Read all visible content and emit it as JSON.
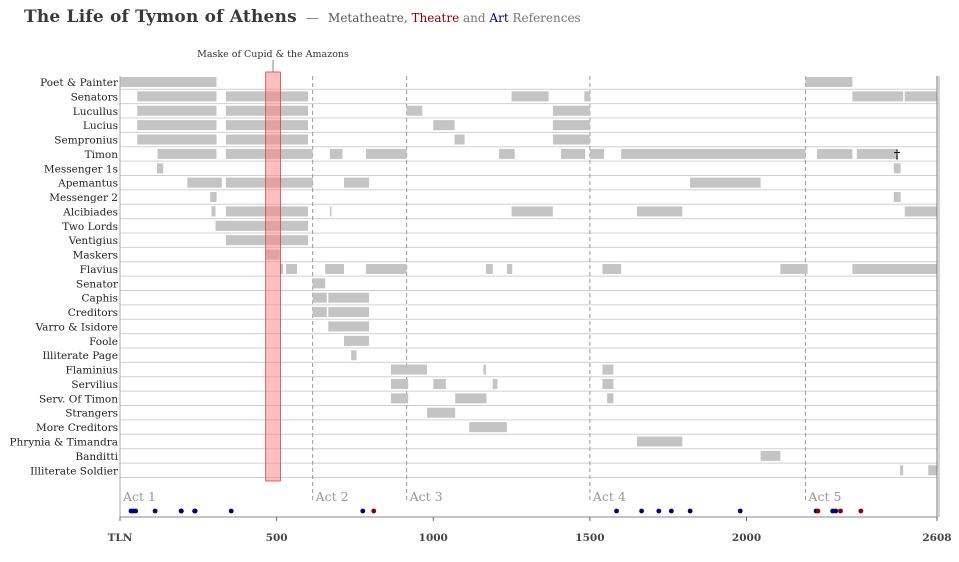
{
  "title": {
    "main": "The Life of Tymon of Athens",
    "dash": "—",
    "w1": "Metatheatre,",
    "w2": "Theatre",
    "w3": "and",
    "w4": "Art",
    "w5": "References"
  },
  "colors": {
    "bar": "#c4c4c4",
    "highlight": "#ff7f7f",
    "theatre": "#8b0000",
    "art": "#000080",
    "act_line": "#999999",
    "row_line": "#d0d0d0"
  },
  "chart_data": {
    "type": "timeline",
    "xlim": [
      0,
      2608
    ],
    "x_ticks": [
      {
        "value": 0,
        "label": "TLN"
      },
      {
        "value": 500,
        "label": "500"
      },
      {
        "value": 1000,
        "label": "1000"
      },
      {
        "value": 1500,
        "label": "1500"
      },
      {
        "value": 2000,
        "label": "2000"
      },
      {
        "value": 2608,
        "label": "2608"
      }
    ],
    "acts": [
      {
        "label": "Act 1",
        "start": 0
      },
      {
        "label": "Act 2",
        "start": 615
      },
      {
        "label": "Act 3",
        "start": 915
      },
      {
        "label": "Act 4",
        "start": 1500
      },
      {
        "label": "Act 5",
        "start": 2188
      }
    ],
    "highlight": {
      "label": "Maske of Cupid & the Amazons",
      "start": 465,
      "end": 512
    },
    "characters": [
      {
        "name": "Poet & Painter",
        "spans": [
          [
            0,
            308
          ],
          [
            2188,
            2338
          ]
        ]
      },
      {
        "name": "Senators",
        "spans": [
          [
            55,
            308
          ],
          [
            338,
            600
          ],
          [
            1250,
            1368
          ],
          [
            1482,
            1500
          ],
          [
            2338,
            2500
          ],
          [
            2505,
            2608
          ]
        ]
      },
      {
        "name": "Lucullus",
        "spans": [
          [
            55,
            308
          ],
          [
            338,
            600
          ],
          [
            915,
            965
          ],
          [
            1382,
            1500
          ]
        ]
      },
      {
        "name": "Lucius",
        "spans": [
          [
            55,
            308
          ],
          [
            338,
            600
          ],
          [
            1000,
            1068
          ],
          [
            1382,
            1500
          ]
        ]
      },
      {
        "name": "Sempronius",
        "spans": [
          [
            55,
            308
          ],
          [
            338,
            600
          ],
          [
            1068,
            1100
          ],
          [
            1382,
            1500
          ]
        ]
      },
      {
        "name": "Timon",
        "spans": [
          [
            120,
            308
          ],
          [
            338,
            615
          ],
          [
            670,
            710
          ],
          [
            785,
            915
          ],
          [
            1210,
            1240
          ],
          [
            1240,
            1260
          ],
          [
            1408,
            1485
          ],
          [
            1500,
            1545
          ],
          [
            1600,
            2188
          ],
          [
            2225,
            2338
          ],
          [
            2352,
            2480
          ]
        ],
        "marker": {
          "symbol": "†",
          "x": 2480
        }
      },
      {
        "name": "Messenger 1s",
        "spans": [
          [
            118,
            138
          ],
          [
            2470,
            2492
          ]
        ]
      },
      {
        "name": "Apemantus",
        "spans": [
          [
            215,
            325
          ],
          [
            338,
            615
          ],
          [
            715,
            795
          ],
          [
            1820,
            2045
          ]
        ]
      },
      {
        "name": "Messenger 2",
        "spans": [
          [
            288,
            308
          ],
          [
            2470,
            2492
          ]
        ]
      },
      {
        "name": "Alcibiades",
        "spans": [
          [
            292,
            305
          ],
          [
            338,
            600
          ],
          [
            670,
            675
          ],
          [
            1250,
            1382
          ],
          [
            1650,
            1795
          ],
          [
            2505,
            2608
          ]
        ]
      },
      {
        "name": "Two Lords",
        "spans": [
          [
            305,
            600
          ]
        ]
      },
      {
        "name": "Ventigius",
        "spans": [
          [
            338,
            600
          ]
        ]
      },
      {
        "name": "Maskers",
        "spans": [
          [
            465,
            510
          ]
        ]
      },
      {
        "name": "Flavius",
        "spans": [
          [
            512,
            520
          ],
          [
            530,
            565
          ],
          [
            655,
            715
          ],
          [
            785,
            915
          ],
          [
            1168,
            1190
          ],
          [
            1235,
            1252
          ],
          [
            1540,
            1600
          ],
          [
            2108,
            2195
          ],
          [
            2338,
            2608
          ]
        ]
      },
      {
        "name": "Senator",
        "spans": [
          [
            615,
            655
          ]
        ]
      },
      {
        "name": "Caphis",
        "spans": [
          [
            615,
            660
          ],
          [
            665,
            795
          ]
        ]
      },
      {
        "name": "Creditors",
        "spans": [
          [
            615,
            660
          ],
          [
            665,
            795
          ]
        ]
      },
      {
        "name": "Varro & Isidore",
        "spans": [
          [
            665,
            795
          ]
        ]
      },
      {
        "name": "Foole",
        "spans": [
          [
            715,
            795
          ]
        ]
      },
      {
        "name": "Illiterate Page",
        "spans": [
          [
            738,
            755
          ]
        ]
      },
      {
        "name": "Flaminius",
        "spans": [
          [
            865,
            980
          ],
          [
            1160,
            1168
          ],
          [
            1540,
            1575
          ]
        ]
      },
      {
        "name": "Servilius",
        "spans": [
          [
            865,
            920
          ],
          [
            1000,
            1040
          ],
          [
            1190,
            1205
          ],
          [
            1540,
            1575
          ]
        ]
      },
      {
        "name": "Serv. Of Timon",
        "spans": [
          [
            865,
            920
          ],
          [
            1070,
            1170
          ],
          [
            1555,
            1575
          ]
        ]
      },
      {
        "name": "Strangers",
        "spans": [
          [
            980,
            1070
          ]
        ]
      },
      {
        "name": "More Creditors",
        "spans": [
          [
            1115,
            1235
          ]
        ]
      },
      {
        "name": "Phrynia & Timandra",
        "spans": [
          [
            1650,
            1795
          ]
        ]
      },
      {
        "name": "Banditti",
        "spans": [
          [
            2045,
            2108
          ]
        ]
      },
      {
        "name": "Illiterate Soldier",
        "spans": [
          [
            2490,
            2500
          ],
          [
            2580,
            2608
          ]
        ]
      }
    ],
    "references": [
      {
        "x": 35,
        "type": "art"
      },
      {
        "x": 42,
        "type": "art"
      },
      {
        "x": 50,
        "type": "art"
      },
      {
        "x": 112,
        "type": "art"
      },
      {
        "x": 195,
        "type": "art"
      },
      {
        "x": 196,
        "type": "art"
      },
      {
        "x": 238,
        "type": "art"
      },
      {
        "x": 240,
        "type": "art"
      },
      {
        "x": 355,
        "type": "art"
      },
      {
        "x": 775,
        "type": "art"
      },
      {
        "x": 810,
        "type": "theatre"
      },
      {
        "x": 1585,
        "type": "art"
      },
      {
        "x": 1665,
        "type": "art"
      },
      {
        "x": 1720,
        "type": "art"
      },
      {
        "x": 1760,
        "type": "art"
      },
      {
        "x": 1820,
        "type": "art"
      },
      {
        "x": 1980,
        "type": "art"
      },
      {
        "x": 2222,
        "type": "art"
      },
      {
        "x": 2228,
        "type": "theatre"
      },
      {
        "x": 2275,
        "type": "art"
      },
      {
        "x": 2285,
        "type": "art"
      },
      {
        "x": 2300,
        "type": "theatre"
      },
      {
        "x": 2365,
        "type": "theatre"
      }
    ]
  }
}
